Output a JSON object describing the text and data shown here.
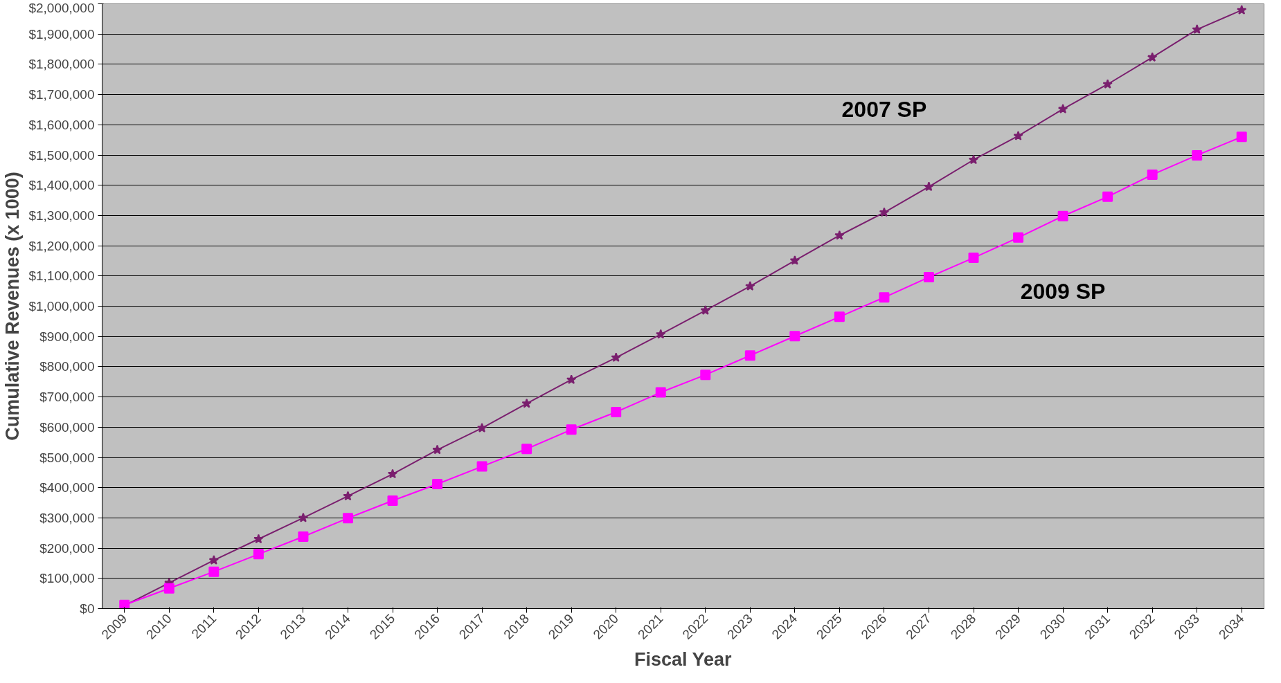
{
  "chart_data": {
    "type": "line",
    "xlabel": "Fiscal Year",
    "ylabel": "Cumulative Revenues (x 1000)",
    "categories": [
      "2009",
      "2010",
      "2011",
      "2012",
      "2013",
      "2014",
      "2015",
      "2016",
      "2017",
      "2018",
      "2019",
      "2020",
      "2021",
      "2022",
      "2023",
      "2024",
      "2025",
      "2026",
      "2027",
      "2028",
      "2029",
      "2030",
      "2031",
      "2032",
      "2033",
      "2034"
    ],
    "series": [
      {
        "name": "2007 SP",
        "color": "#7a1f6e",
        "marker": "star",
        "values": [
          10000,
          85000,
          160000,
          230000,
          300000,
          372000,
          445000,
          525000,
          597000,
          678000,
          757000,
          830000,
          907000,
          986000,
          1066000,
          1151000,
          1234000,
          1310000,
          1395000,
          1484000,
          1563000,
          1652000,
          1734000,
          1823000,
          1915000,
          1979000
        ]
      },
      {
        "name": "2009 SP",
        "color": "#ff00ff",
        "marker": "square",
        "values": [
          12000,
          67000,
          122000,
          180000,
          238000,
          299000,
          357000,
          412000,
          470000,
          528000,
          592000,
          650000,
          715000,
          773000,
          837000,
          901000,
          965000,
          1029000,
          1096000,
          1160000,
          1227000,
          1298000,
          1362000,
          1435000,
          1499000,
          1560000
        ]
      }
    ],
    "ylim": [
      0,
      2000000
    ],
    "yticks": [
      {
        "value": 0,
        "label": "$0"
      },
      {
        "value": 100000,
        "label": "$100,000"
      },
      {
        "value": 200000,
        "label": "$200,000"
      },
      {
        "value": 300000,
        "label": "$300,000"
      },
      {
        "value": 400000,
        "label": "$400,000"
      },
      {
        "value": 500000,
        "label": "$500,000"
      },
      {
        "value": 600000,
        "label": "$600,000"
      },
      {
        "value": 700000,
        "label": "$700,000"
      },
      {
        "value": 800000,
        "label": "$800,000"
      },
      {
        "value": 900000,
        "label": "$900,000"
      },
      {
        "value": 1000000,
        "label": "$1,000,000"
      },
      {
        "value": 1100000,
        "label": "$1,100,000"
      },
      {
        "value": 1200000,
        "label": "$1,200,000"
      },
      {
        "value": 1300000,
        "label": "$1,300,000"
      },
      {
        "value": 1400000,
        "label": "$1,400,000"
      },
      {
        "value": 1500000,
        "label": "$1,500,000"
      },
      {
        "value": 1600000,
        "label": "$1,600,000"
      },
      {
        "value": 1700000,
        "label": "$1,700,000"
      },
      {
        "value": 1800000,
        "label": "$1,800,000"
      },
      {
        "value": 1900000,
        "label": "$1,900,000"
      },
      {
        "value": 2000000,
        "label": "$2,000,000"
      }
    ],
    "grid": "y",
    "line_style": "solid"
  }
}
